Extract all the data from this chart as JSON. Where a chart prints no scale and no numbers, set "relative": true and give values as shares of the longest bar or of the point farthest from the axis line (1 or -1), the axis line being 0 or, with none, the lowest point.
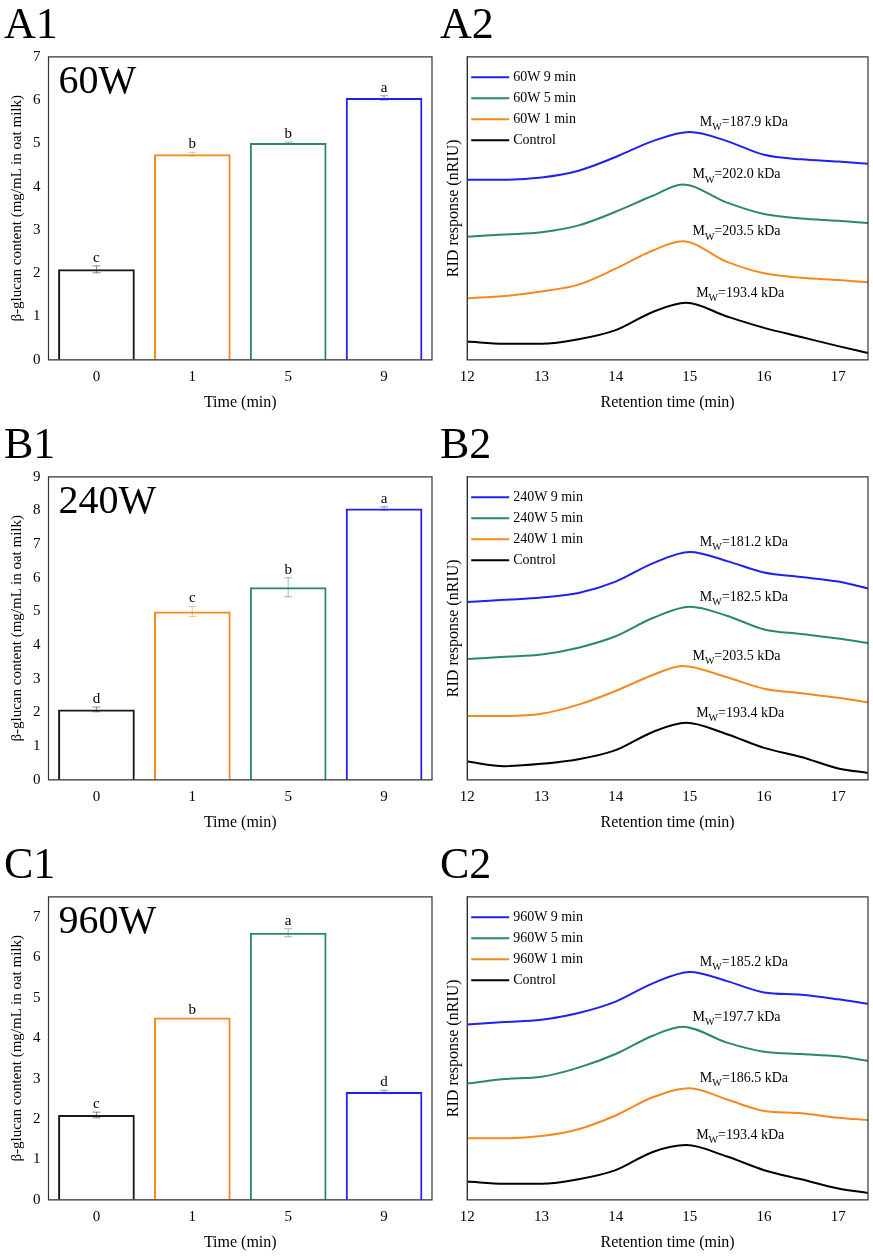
{
  "chart_data": [
    {
      "type": "bar",
      "title": "A1",
      "xlabel": "Time (min)",
      "ylabel": "β-glucan content (mg/mL in oat milk)",
      "categories": [
        "0",
        "1",
        "5",
        "9"
      ],
      "values": [
        2.09,
        4.75,
        5.01,
        6.05
      ],
      "errors": [
        0.08,
        0.04,
        0.02,
        0.05
      ],
      "colors": [
        "#1a1a1a",
        "#f5891f",
        "#2a8a62",
        "#2020f0"
      ],
      "ylim": [
        0,
        7
      ],
      "yticks": [
        0,
        1,
        2,
        3,
        4,
        5,
        6,
        7
      ],
      "annotations": [
        "60W",
        {
          "text": "c",
          "x": "0",
          "y": 2.09
        },
        {
          "text": "b",
          "x": "1",
          "y": 4.75
        },
        {
          "text": "b",
          "x": "5",
          "y": 5.01
        },
        {
          "text": "a",
          "x": "9",
          "y": 6.05
        }
      ]
    },
    {
      "type": "line",
      "title": "A2",
      "xlabel": "Retention time (min)",
      "ylabel": "RID response (nRIU)",
      "relative": true,
      "xlim": [
        12,
        17.4
      ],
      "xticks": [
        12,
        13,
        14,
        15,
        16,
        17
      ],
      "legend": "top left",
      "series": [
        {
          "name": "60W 9 min",
          "color": "#2020f0",
          "x": [
            12,
            12.5,
            13,
            13.5,
            14,
            14.5,
            15,
            15.5,
            16,
            16.5,
            17,
            17.4
          ],
          "values": [
            0.79,
            0.79,
            0.8,
            0.83,
            0.89,
            0.96,
            1,
            0.96,
            0.9,
            0.88,
            0.87,
            0.86
          ]
        },
        {
          "name": "60W 5 min",
          "color": "#2a8a62",
          "x": [
            12,
            12.5,
            13,
            13.5,
            14,
            14.5,
            14.9,
            15.5,
            16,
            16.5,
            17,
            17.4
          ],
          "values": [
            0.54,
            0.55,
            0.56,
            0.59,
            0.65,
            0.72,
            0.77,
            0.69,
            0.64,
            0.62,
            0.61,
            0.6
          ]
        },
        {
          "name": "60W 1 min",
          "color": "#f5891f",
          "x": [
            12,
            12.5,
            13,
            13.5,
            14,
            14.5,
            14.9,
            15.5,
            16,
            16.5,
            17,
            17.4
          ],
          "values": [
            0.27,
            0.28,
            0.3,
            0.33,
            0.4,
            0.48,
            0.52,
            0.43,
            0.38,
            0.36,
            0.35,
            0.34
          ]
        },
        {
          "name": "Control",
          "color": "#000000",
          "x": [
            12,
            12.5,
            13,
            13.5,
            14,
            14.5,
            14.95,
            15.5,
            16,
            16.5,
            17,
            17.4
          ],
          "values": [
            0.08,
            0.07,
            0.07,
            0.09,
            0.13,
            0.21,
            0.25,
            0.19,
            0.14,
            0.1,
            0.06,
            0.03
          ]
        }
      ],
      "annotations": [
        {
          "text": "M$_{W}$=187.9 kDa",
          "x": 15,
          "y": 1
        },
        {
          "text": "M$_{W}$=202.0 kDa",
          "x": 14.9,
          "y": 0.77
        },
        {
          "text": "M$_{W}$=203.5 kDa",
          "x": 14.9,
          "y": 0.52
        },
        {
          "text": "M$_{W}$=193.4 kDa",
          "x": 14.95,
          "y": 0.25
        }
      ]
    },
    {
      "type": "bar",
      "title": "B1",
      "xlabel": "Time (min)",
      "ylabel": "β-glucan content (mg/mL in oat milk)",
      "categories": [
        "0",
        "1",
        "5",
        "9"
      ],
      "values": [
        2.09,
        5.0,
        5.72,
        8.06
      ],
      "errors": [
        0.07,
        0.15,
        0.28,
        0.05
      ],
      "colors": [
        "#1a1a1a",
        "#f5891f",
        "#2a8a62",
        "#2020f0"
      ],
      "ylim": [
        0,
        9
      ],
      "yticks": [
        0,
        1,
        2,
        3,
        4,
        5,
        6,
        7,
        8,
        9
      ],
      "annotations": [
        "240W",
        {
          "text": "d",
          "x": "0",
          "y": 2.09
        },
        {
          "text": "c",
          "x": "1",
          "y": 5.0
        },
        {
          "text": "b",
          "x": "5",
          "y": 5.72
        },
        {
          "text": "a",
          "x": "9",
          "y": 8.06
        }
      ]
    },
    {
      "type": "line",
      "title": "B2",
      "xlabel": "Retention time (min)",
      "ylabel": "RID response (nRIU)",
      "relative": true,
      "xlim": [
        12,
        17.4
      ],
      "xticks": [
        12,
        13,
        14,
        15,
        16,
        17
      ],
      "legend": "top left",
      "series": [
        {
          "name": "240W 9 min",
          "color": "#2020f0",
          "x": [
            12,
            12.5,
            13,
            13.5,
            14,
            14.5,
            15,
            15.5,
            16,
            16.5,
            17,
            17.4
          ],
          "values": [
            0.78,
            0.79,
            0.8,
            0.82,
            0.87,
            0.95,
            1,
            0.96,
            0.91,
            0.89,
            0.87,
            0.84
          ]
        },
        {
          "name": "240W 5 min",
          "color": "#2a8a62",
          "x": [
            12,
            12.5,
            13,
            13.5,
            14,
            14.5,
            15,
            15.5,
            16,
            16.5,
            17,
            17.4
          ],
          "values": [
            0.53,
            0.54,
            0.55,
            0.58,
            0.63,
            0.71,
            0.76,
            0.72,
            0.66,
            0.64,
            0.62,
            0.6
          ]
        },
        {
          "name": "240W 1 min",
          "color": "#f5891f",
          "x": [
            12,
            12.5,
            13,
            13.5,
            14,
            14.5,
            14.9,
            15.5,
            16,
            16.5,
            17,
            17.4
          ],
          "values": [
            0.28,
            0.28,
            0.29,
            0.33,
            0.39,
            0.46,
            0.5,
            0.45,
            0.4,
            0.38,
            0.36,
            0.34
          ]
        },
        {
          "name": "Control",
          "color": "#000000",
          "x": [
            12,
            12.5,
            13,
            13.5,
            14,
            14.5,
            14.95,
            15.5,
            16,
            16.5,
            17,
            17.4
          ],
          "values": [
            0.08,
            0.06,
            0.07,
            0.09,
            0.13,
            0.21,
            0.25,
            0.2,
            0.14,
            0.1,
            0.05,
            0.03
          ]
        }
      ],
      "annotations": [
        {
          "text": "M$_{W}$=181.2 kDa",
          "x": 15,
          "y": 1
        },
        {
          "text": "M$_{W}$=182.5 kDa",
          "x": 15,
          "y": 0.76
        },
        {
          "text": "M$_{W}$=203.5 kDa",
          "x": 14.9,
          "y": 0.5
        },
        {
          "text": "M$_{W}$=193.4 kDa",
          "x": 14.95,
          "y": 0.25
        }
      ]
    },
    {
      "type": "bar",
      "title": "C1",
      "xlabel": "Time (min)",
      "ylabel": "β-glucan content (mg/mL in oat milk)",
      "categories": [
        "0",
        "1",
        "5",
        "9"
      ],
      "values": [
        2.1,
        4.51,
        6.61,
        2.67
      ],
      "errors": [
        0.07,
        null,
        0.1,
        0.04
      ],
      "colors": [
        "#1a1a1a",
        "#f5891f",
        "#2a8a62",
        "#2020f0"
      ],
      "ylim": [
        0,
        7.5
      ],
      "yticks": [
        0,
        1,
        2,
        3,
        4,
        5,
        6,
        7
      ],
      "annotations": [
        "960W",
        {
          "text": "c",
          "x": "0",
          "y": 2.1
        },
        {
          "text": "b",
          "x": "1",
          "y": 4.51
        },
        {
          "text": "a",
          "x": "5",
          "y": 6.61
        },
        {
          "text": "d",
          "x": "9",
          "y": 2.67
        }
      ]
    },
    {
      "type": "line",
      "title": "C2",
      "xlabel": "Retention time (min)",
      "ylabel": "RID response (nRIU)",
      "relative": true,
      "xlim": [
        12,
        17.4
      ],
      "xticks": [
        12,
        13,
        14,
        15,
        16,
        17
      ],
      "legend": "top left",
      "series": [
        {
          "name": "960W 9 min",
          "color": "#2020f0",
          "x": [
            12,
            12.5,
            13,
            13.5,
            14,
            14.5,
            15,
            15.5,
            16,
            16.5,
            17,
            17.4
          ],
          "values": [
            0.77,
            0.78,
            0.79,
            0.82,
            0.87,
            0.95,
            1,
            0.96,
            0.91,
            0.9,
            0.88,
            0.86
          ]
        },
        {
          "name": "960W 5 min",
          "color": "#2a8a62",
          "x": [
            12,
            12.5,
            13,
            13.5,
            14,
            14.5,
            14.9,
            15.5,
            16,
            16.5,
            17,
            17.4
          ],
          "values": [
            0.51,
            0.53,
            0.54,
            0.58,
            0.64,
            0.72,
            0.76,
            0.69,
            0.65,
            0.64,
            0.63,
            0.61
          ]
        },
        {
          "name": "960W 1 min",
          "color": "#f5891f",
          "x": [
            12,
            12.5,
            13,
            13.5,
            14,
            14.5,
            15,
            15.5,
            16,
            16.5,
            17,
            17.4
          ],
          "values": [
            0.27,
            0.27,
            0.28,
            0.31,
            0.37,
            0.45,
            0.49,
            0.44,
            0.39,
            0.38,
            0.36,
            0.35
          ]
        },
        {
          "name": "Control",
          "color": "#000000",
          "x": [
            12,
            12.5,
            13,
            13.5,
            14,
            14.5,
            14.95,
            15.5,
            16,
            16.5,
            17,
            17.4
          ],
          "values": [
            0.08,
            0.07,
            0.07,
            0.09,
            0.13,
            0.21,
            0.24,
            0.19,
            0.13,
            0.09,
            0.05,
            0.03
          ]
        }
      ],
      "annotations": [
        {
          "text": "M$_{W}$=185.2 kDa",
          "x": 15,
          "y": 1
        },
        {
          "text": "M$_{W}$=197.7 kDa",
          "x": 14.9,
          "y": 0.76
        },
        {
          "text": "M$_{W}$=186.5 kDa",
          "x": 15,
          "y": 0.49
        },
        {
          "text": "M$_{W}$=193.4 kDa",
          "x": 14.95,
          "y": 0.24
        }
      ]
    }
  ]
}
